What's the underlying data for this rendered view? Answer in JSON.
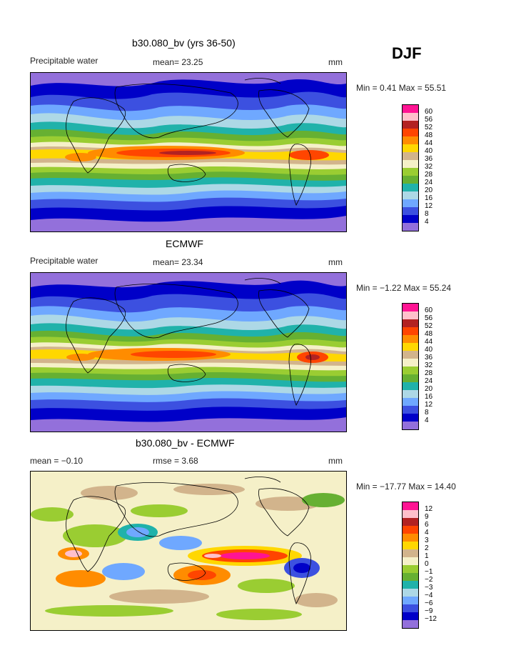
{
  "season": "DJF",
  "panels": [
    {
      "title": "b30.080_bv (yrs 36-50)",
      "left_label": "Precipitable water",
      "center_label": "mean=  23.25",
      "units": "mm",
      "min_max": "Min =   0.41  Max =  55.51",
      "colorbar": {
        "labels": [
          "60",
          "56",
          "52",
          "48",
          "44",
          "40",
          "36",
          "32",
          "28",
          "24",
          "20",
          "16",
          "12",
          "8",
          "4"
        ],
        "colors": [
          "#ff1493",
          "#ffc0cb",
          "#b22222",
          "#ff4500",
          "#ff8c00",
          "#ffd700",
          "#d2b48c",
          "#f5f0c8",
          "#9acd32",
          "#66b032",
          "#20b2aa",
          "#add8e6",
          "#6fa8ff",
          "#3c50e0",
          "#0000c8",
          "#9370db"
        ]
      }
    },
    {
      "title": "ECMWF",
      "left_label": "Precipitable water",
      "center_label": "mean=  23.34",
      "units": "mm",
      "min_max": "Min =  −1.22  Max =  55.24",
      "colorbar": {
        "labels": [
          "60",
          "56",
          "52",
          "48",
          "44",
          "40",
          "36",
          "32",
          "28",
          "24",
          "20",
          "16",
          "12",
          "8",
          "4"
        ],
        "colors": [
          "#ff1493",
          "#ffc0cb",
          "#b22222",
          "#ff4500",
          "#ff8c00",
          "#ffd700",
          "#d2b48c",
          "#f5f0c8",
          "#9acd32",
          "#66b032",
          "#20b2aa",
          "#add8e6",
          "#6fa8ff",
          "#3c50e0",
          "#0000c8",
          "#9370db"
        ]
      }
    },
    {
      "title": "b30.080_bv - ECMWF",
      "left_label": "mean =   −0.10",
      "center_label": "rmse =    3.68",
      "units": "mm",
      "min_max": "Min = −17.77  Max =   14.40",
      "colorbar": {
        "labels": [
          "12",
          "9",
          "6",
          "4",
          "3",
          "2",
          "1",
          "0",
          "−1",
          "−2",
          "−3",
          "−4",
          "−6",
          "−9",
          "−12"
        ],
        "colors": [
          "#ff1493",
          "#ffc0cb",
          "#b22222",
          "#ff4500",
          "#ff8c00",
          "#ffd700",
          "#d2b48c",
          "#f5f0c8",
          "#9acd32",
          "#66b032",
          "#20b2aa",
          "#add8e6",
          "#6fa8ff",
          "#3c50e0",
          "#0000c8",
          "#9370db"
        ]
      }
    }
  ]
}
